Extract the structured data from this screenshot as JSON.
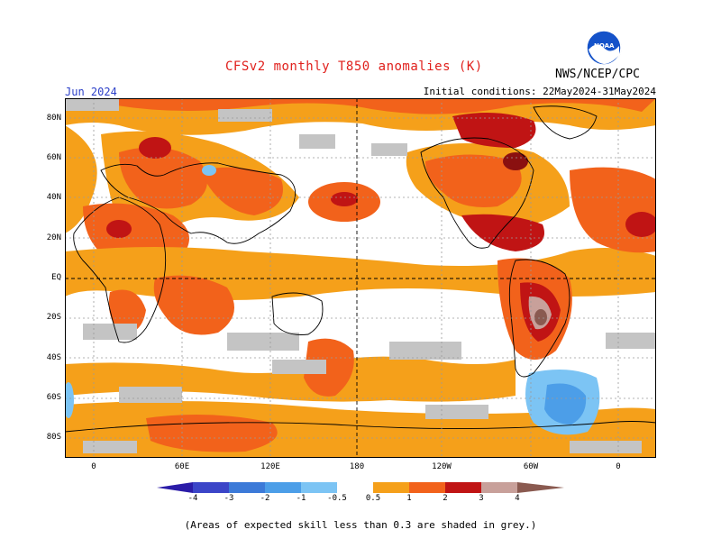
{
  "header": {
    "title": "CFSv2 monthly T850 anomalies (K)",
    "agency": "NWS/NCEP/CPC",
    "logo_text": "NOAA",
    "month": "Jun 2024",
    "initial_conditions": "Initial conditions: 22May2024-31May2024"
  },
  "map": {
    "lat_labels": [
      "80N",
      "60N",
      "40N",
      "20N",
      "EQ",
      "20S",
      "40S",
      "60S",
      "80S"
    ],
    "lon_labels": [
      "0",
      "60E",
      "120E",
      "180",
      "120W",
      "60W",
      "0"
    ],
    "grid": "dotted",
    "colors": {
      "ocean_border": "#000000",
      "grid": "#9a9a9a"
    }
  },
  "colorbar": {
    "labels": [
      "-4",
      "-3",
      "-2",
      "-1",
      "-0.5",
      "0.5",
      "1",
      "2",
      "3",
      "4"
    ],
    "colors": [
      "#2b1ca8",
      "#3b45c8",
      "#3c7ad8",
      "#4c9ee8",
      "#7cc4f4",
      "#ffffff",
      "#f5a01a",
      "#f2621b",
      "#f0321a",
      "#c01414",
      "#8a1010",
      "#c8a09a",
      "#8a5a50"
    ]
  },
  "footnote": "(Areas of expected skill less than 0.3 are shaded in grey.)"
}
